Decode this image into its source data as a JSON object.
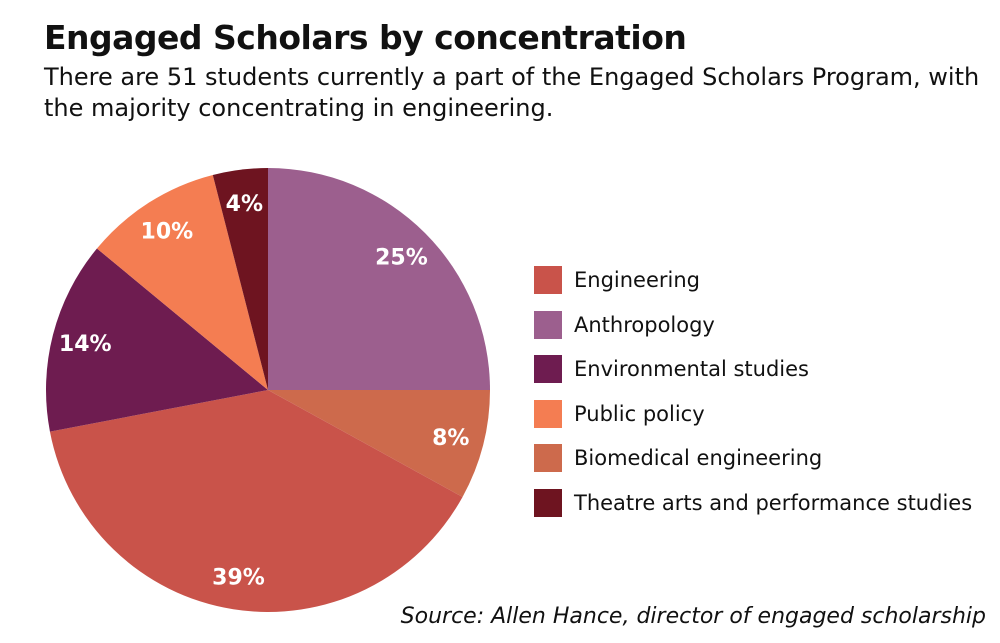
{
  "title": "Engaged Scholars by concentration",
  "subtitle": "There are 51 students currently a part of the Engaged Scholars Program, with the majority concentrating in engineering.",
  "source": "Source: Allen Hance, director of engaged scholarship",
  "chart_data": {
    "type": "pie",
    "title": "Engaged Scholars by concentration",
    "unit": "%",
    "slices": [
      {
        "name": "Anthropology",
        "value": 25,
        "label": "25%",
        "color": "#9c5f8e"
      },
      {
        "name": "Biomedical engineering",
        "value": 8,
        "label": "8%",
        "color": "#cd6a4c"
      },
      {
        "name": "Engineering",
        "value": 39,
        "label": "39%",
        "color": "#c9534a"
      },
      {
        "name": "Environmental studies",
        "value": 14,
        "label": "14%",
        "color": "#6e1c50"
      },
      {
        "name": "Public policy",
        "value": 10,
        "label": "10%",
        "color": "#f47d52"
      },
      {
        "name": "Theatre arts and performance studies",
        "value": 4,
        "label": "4%",
        "color": "#6e1420"
      }
    ],
    "legend": {
      "placement": "right",
      "order": [
        "Engineering",
        "Anthropology",
        "Environmental studies",
        "Public policy",
        "Biomedical engineering",
        "Theatre arts and performance studies"
      ]
    }
  }
}
